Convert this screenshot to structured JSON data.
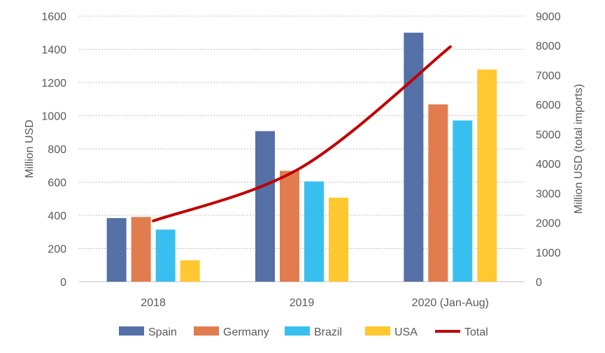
{
  "chart_data": {
    "type": "bar",
    "categories": [
      "2018",
      "2019",
      "2020 (Jan-Aug)"
    ],
    "series": [
      {
        "name": "Spain",
        "values": [
          383,
          907,
          1500
        ],
        "color": "#5470a7",
        "axis": "left"
      },
      {
        "name": "Germany",
        "values": [
          390,
          668,
          1068
        ],
        "color": "#e07c4e",
        "axis": "left"
      },
      {
        "name": "Brazil",
        "values": [
          314,
          604,
          971
        ],
        "color": "#37bff0",
        "axis": "left"
      },
      {
        "name": "USA",
        "values": [
          129,
          506,
          1278
        ],
        "color": "#ffc830",
        "axis": "left"
      }
    ],
    "line_series": {
      "name": "Total",
      "type": "line",
      "values": [
        2060,
        3880,
        7960
      ],
      "color": "#c00000",
      "axis": "right"
    },
    "ylabel": "Million USD",
    "y2label": "Million USD (total imports)",
    "ylim": [
      0,
      1600
    ],
    "y2lim": [
      0,
      9000
    ],
    "yticks": [
      "0",
      "200",
      "400",
      "600",
      "800",
      "1000",
      "1200",
      "1400",
      "1600"
    ],
    "y2ticks": [
      "0",
      "1000",
      "2000",
      "3000",
      "4000",
      "5000",
      "6000",
      "7000",
      "8000",
      "9000"
    ],
    "grid": true,
    "legend": {
      "placement": "bottom",
      "entries": [
        "Spain",
        "Germany",
        "Brazil",
        "USA",
        "Total"
      ]
    }
  }
}
